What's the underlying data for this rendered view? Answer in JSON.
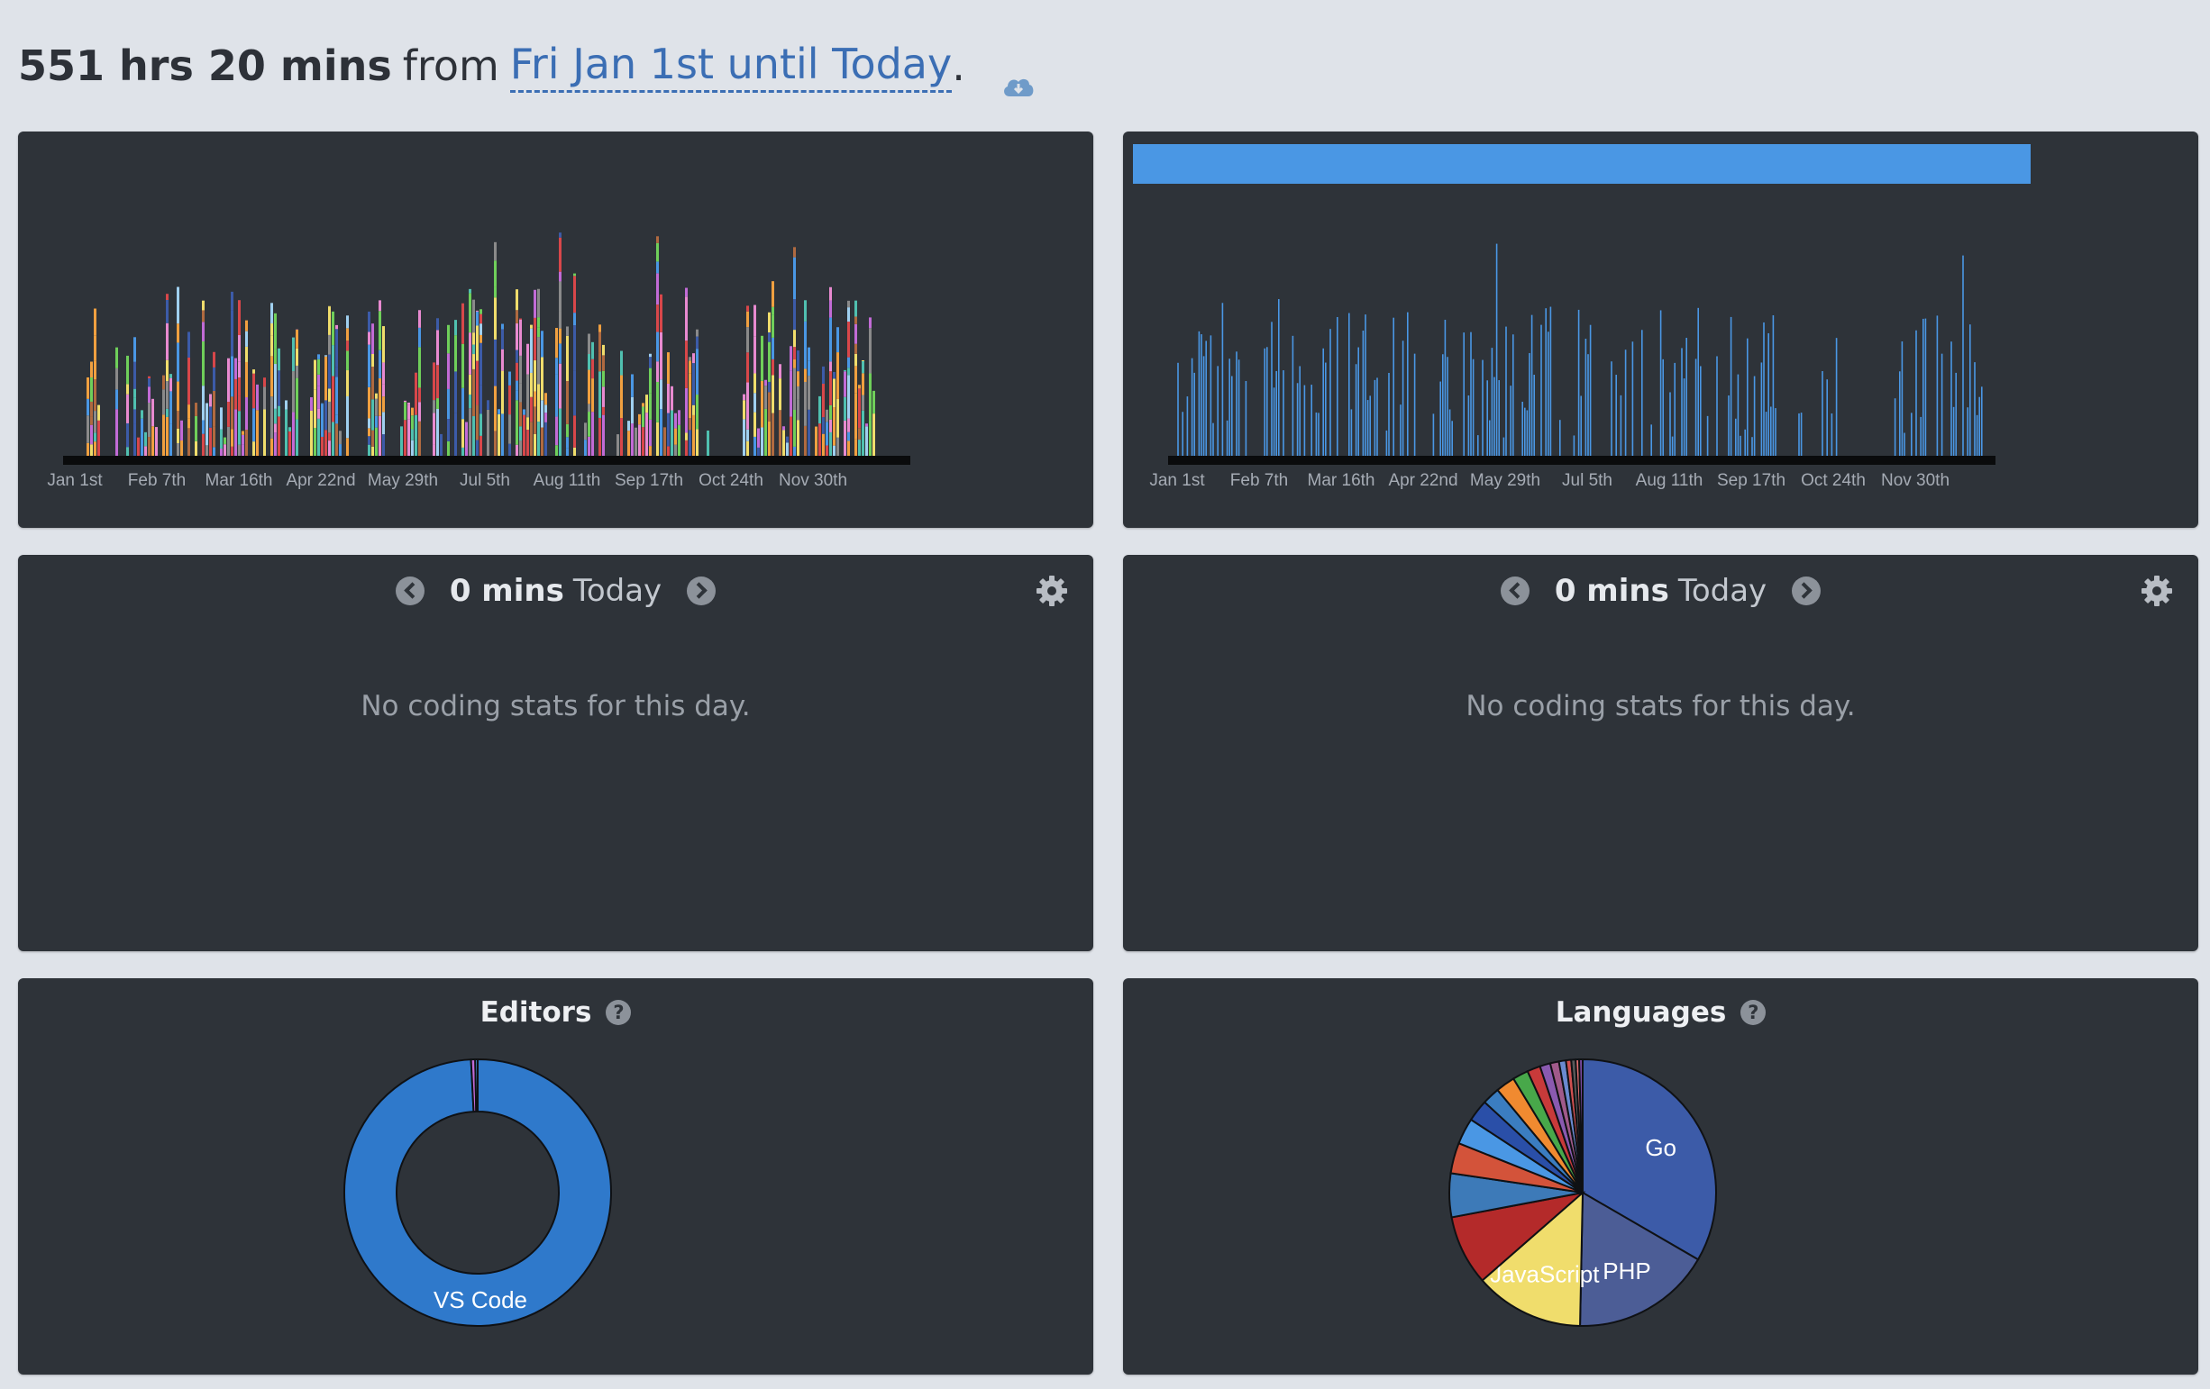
{
  "header": {
    "total": "551 hrs 20 mins",
    "from": "from",
    "range": "Fri Jan 1st until Today",
    "period": ".",
    "download_icon": "cloud-download-icon"
  },
  "colors": {
    "background": "#dfe3e9",
    "panel": "#2e3339",
    "link": "#3b6eb4",
    "bar_blue": "#4a97e4"
  },
  "activity_chart": {
    "x_ticks": [
      "Jan 1st",
      "Feb 7th",
      "Mar 16th",
      "Apr 22nd",
      "May 29th",
      "Jul 5th",
      "Aug 11th",
      "Sep 17th",
      "Oct 24th",
      "Nov 30th"
    ]
  },
  "daily_chart": {
    "x_ticks": [
      "Jan 1st",
      "Feb 7th",
      "Mar 16th",
      "Apr 22nd",
      "May 29th",
      "Jul 5th",
      "Aug 11th",
      "Sep 17th",
      "Oct 24th",
      "Nov 30th"
    ]
  },
  "day_left": {
    "mins": "0 mins",
    "today": "Today",
    "empty": "No coding stats for this day."
  },
  "day_right": {
    "mins": "0 mins",
    "today": "Today",
    "empty": "No coding stats for this day."
  },
  "editors": {
    "title": "Editors"
  },
  "languages": {
    "title": "Languages"
  },
  "chart_data": [
    {
      "type": "area",
      "x_tick_labels": [
        "Jan 1st",
        "Feb 7th",
        "Mar 16th",
        "Apr 22nd",
        "May 29th",
        "Jul 5th",
        "Aug 11th",
        "Sep 17th",
        "Oct 24th",
        "Nov 30th"
      ],
      "stacked": true,
      "grid": false
    },
    {
      "type": "bar",
      "x_tick_labels": [
        "Jan 1st",
        "Feb 7th",
        "Mar 16th",
        "Apr 22nd",
        "May 29th",
        "Jul 5th",
        "Aug 11th",
        "Sep 17th",
        "Oct 24th",
        "Nov 30th"
      ],
      "grid": false
    },
    {
      "type": "pie",
      "title": "Editors",
      "donut": true,
      "slices": [
        {
          "label": "VS Code",
          "value": 99.2,
          "color": "#2f79cb"
        },
        {
          "label": "",
          "value": 0.5,
          "color": "#c26bd6"
        },
        {
          "label": "",
          "value": 0.3,
          "color": "#4a97e4"
        }
      ]
    },
    {
      "type": "pie",
      "title": "Languages",
      "slices": [
        {
          "label": "Go",
          "value": 31.5,
          "color": "#3c5ba8"
        },
        {
          "label": "PHP",
          "value": 16.0,
          "color": "#4c5d96"
        },
        {
          "label": "JavaScript",
          "value": 12.5,
          "color": "#f0dd6c"
        },
        {
          "label": "",
          "value": 8.0,
          "color": "#b42a2a"
        },
        {
          "label": "",
          "value": 5.0,
          "color": "#3d7ab8"
        },
        {
          "label": "",
          "value": 3.5,
          "color": "#d3533a"
        },
        {
          "label": "",
          "value": 3.0,
          "color": "#4a97e4"
        },
        {
          "label": "",
          "value": 2.5,
          "color": "#2a4fa8"
        },
        {
          "label": "",
          "value": 2.0,
          "color": "#3b7dc0"
        },
        {
          "label": "",
          "value": 2.2,
          "color": "#f08a30"
        },
        {
          "label": "",
          "value": 1.8,
          "color": "#48a84a"
        },
        {
          "label": "",
          "value": 1.5,
          "color": "#c83a3a"
        },
        {
          "label": "",
          "value": 1.2,
          "color": "#8a5ab0"
        },
        {
          "label": "",
          "value": 1.0,
          "color": "#a05a8a"
        },
        {
          "label": "",
          "value": 0.8,
          "color": "#6a8ad0"
        },
        {
          "label": "",
          "value": 0.6,
          "color": "#d05050"
        },
        {
          "label": "",
          "value": 0.5,
          "color": "#5a5a5a"
        },
        {
          "label": "",
          "value": 0.4,
          "color": "#e07070"
        },
        {
          "label": "",
          "value": 0.4,
          "color": "#7a4aa0"
        }
      ]
    }
  ]
}
